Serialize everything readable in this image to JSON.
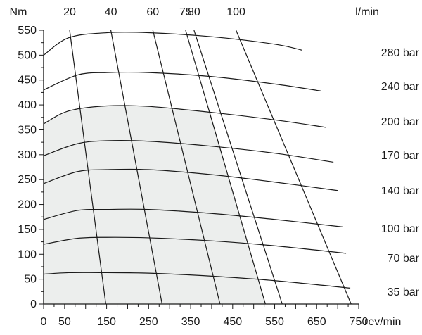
{
  "chart_data": {
    "type": "line",
    "x_axis": {
      "unit": "rev/min",
      "range": [
        0,
        750
      ],
      "tick_labels": [
        "0",
        "50",
        "150",
        "250",
        "350",
        "450",
        "550",
        "650",
        "750"
      ],
      "tick_values": [
        0,
        50,
        150,
        250,
        350,
        450,
        550,
        650,
        750
      ]
    },
    "y_axis": {
      "unit": "Nm",
      "range": [
        0,
        550
      ],
      "tick_labels": [
        "0",
        "50",
        "100",
        "150",
        "200",
        "250",
        "300",
        "350",
        "400",
        "450",
        "500",
        "550"
      ],
      "tick_values": [
        0,
        50,
        100,
        150,
        200,
        250,
        300,
        350,
        400,
        450,
        500,
        550
      ]
    },
    "top_axis": {
      "unit": "l/min",
      "tick_labels": [
        "20",
        "40",
        "60",
        "75",
        "80",
        "100"
      ]
    },
    "pressure_curves": [
      {
        "name": "280 bar",
        "points": [
          [
            0,
            500
          ],
          [
            60,
            535
          ],
          [
            150,
            545
          ],
          [
            250,
            545
          ],
          [
            400,
            537
          ],
          [
            550,
            522
          ],
          [
            615,
            510
          ]
        ]
      },
      {
        "name": "240 bar",
        "points": [
          [
            0,
            430
          ],
          [
            80,
            460
          ],
          [
            150,
            465
          ],
          [
            250,
            465
          ],
          [
            400,
            457
          ],
          [
            550,
            442
          ],
          [
            660,
            428
          ]
        ]
      },
      {
        "name": "200 bar",
        "points": [
          [
            0,
            362
          ],
          [
            60,
            388
          ],
          [
            150,
            398
          ],
          [
            250,
            397
          ],
          [
            400,
            385
          ],
          [
            550,
            370
          ],
          [
            672,
            355
          ]
        ]
      },
      {
        "name": "170 bar",
        "points": [
          [
            0,
            298
          ],
          [
            80,
            322
          ],
          [
            150,
            328
          ],
          [
            250,
            327
          ],
          [
            400,
            317
          ],
          [
            550,
            303
          ],
          [
            690,
            285
          ]
        ]
      },
      {
        "name": "140 bar",
        "points": [
          [
            0,
            242
          ],
          [
            80,
            266
          ],
          [
            150,
            270
          ],
          [
            250,
            270
          ],
          [
            400,
            260
          ],
          [
            550,
            245
          ],
          [
            700,
            228
          ]
        ]
      },
      {
        "name": "100 bar",
        "points": [
          [
            0,
            170
          ],
          [
            80,
            188
          ],
          [
            150,
            190
          ],
          [
            250,
            190
          ],
          [
            400,
            182
          ],
          [
            550,
            170
          ],
          [
            712,
            155
          ]
        ]
      },
      {
        "name": "70 bar",
        "points": [
          [
            0,
            120
          ],
          [
            80,
            132
          ],
          [
            150,
            134
          ],
          [
            250,
            133
          ],
          [
            400,
            127
          ],
          [
            550,
            117
          ],
          [
            720,
            102
          ]
        ]
      },
      {
        "name": "35 bar",
        "points": [
          [
            0,
            60
          ],
          [
            60,
            63
          ],
          [
            150,
            63
          ],
          [
            250,
            62
          ],
          [
            400,
            56
          ],
          [
            550,
            47
          ],
          [
            730,
            32
          ]
        ]
      }
    ],
    "flow_lines": [
      {
        "name": "20",
        "points": [
          [
            62,
            550
          ],
          [
            148,
            0
          ]
        ]
      },
      {
        "name": "40",
        "points": [
          [
            160,
            550
          ],
          [
            282,
            0
          ]
        ]
      },
      {
        "name": "60",
        "points": [
          [
            260,
            550
          ],
          [
            420,
            0
          ]
        ]
      },
      {
        "name": "75",
        "points": [
          [
            338,
            550
          ],
          [
            528,
            0
          ]
        ]
      },
      {
        "name": "80",
        "points": [
          [
            358,
            550
          ],
          [
            568,
            0
          ]
        ]
      },
      {
        "name": "100",
        "points": [
          [
            458,
            550
          ],
          [
            732,
            0
          ]
        ]
      }
    ],
    "shaded_region": {
      "color": "#eceeed",
      "x_range": [
        0,
        528
      ],
      "upper_curve": "200 bar"
    },
    "pressure_label_order": [
      "280 bar",
      "240 bar",
      "200 bar",
      "170 bar",
      "140 bar",
      "100 bar",
      "70 bar",
      "35 bar"
    ],
    "grid": false,
    "legend": "right",
    "colors": {
      "line": "#1a1a1a",
      "shade": "#eceeed",
      "background": "#ffffff"
    }
  }
}
